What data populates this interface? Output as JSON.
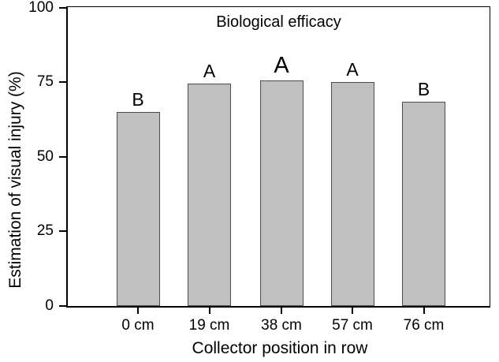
{
  "chart_data": {
    "type": "bar",
    "title": "Biological efficacy",
    "xlabel": "Collector position in row",
    "ylabel": "Estimation of visual injury (%)",
    "categories": [
      "0 cm",
      "19 cm",
      "38 cm",
      "57 cm",
      "76 cm"
    ],
    "values": [
      65,
      74.5,
      75.5,
      75,
      68.5
    ],
    "bar_labels": [
      "B",
      "A",
      "A",
      "A",
      "B"
    ],
    "ylim": [
      0,
      100
    ],
    "y_ticks": [
      0,
      25,
      50,
      75,
      100
    ],
    "y_tick_labels": [
      "0",
      "25",
      "50",
      "75",
      "100"
    ],
    "grid": false,
    "legend": false,
    "colors": {
      "bar_fill": "#c0c0c0",
      "bar_border": "#4d4d4d",
      "axis": "#000000",
      "text": "#000000",
      "background": "#ffffff"
    }
  }
}
